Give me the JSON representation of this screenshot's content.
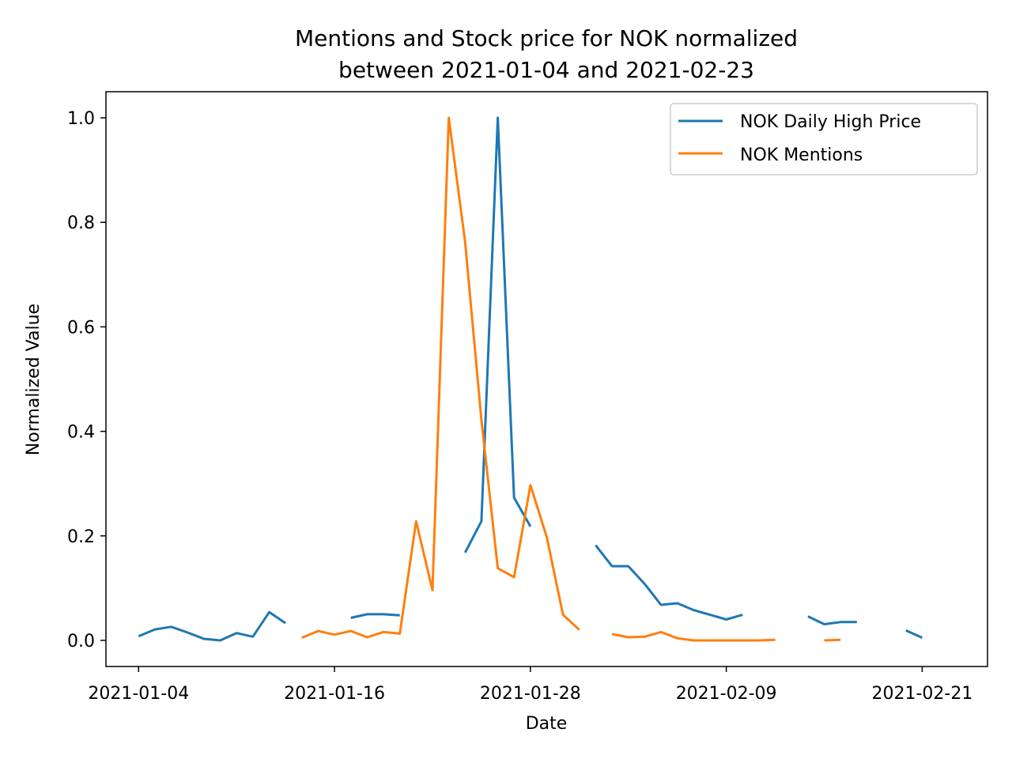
{
  "chart_data": {
    "type": "line",
    "title": "Mentions and Stock price for NOK normalized",
    "subtitle": "between 2021-01-04 and 2021-02-23",
    "xlabel": "Date",
    "ylabel": "Normalized Value",
    "xlim": [
      "2021-01-02",
      "2021-02-25"
    ],
    "ylim": [
      -0.05,
      1.05
    ],
    "x_ticks": [
      "2021-01-04",
      "2021-01-16",
      "2021-01-28",
      "2021-02-09",
      "2021-02-21"
    ],
    "y_ticks": [
      0.0,
      0.2,
      0.4,
      0.6,
      0.8,
      1.0
    ],
    "y_tick_labels": [
      "0.0",
      "0.2",
      "0.4",
      "0.6",
      "0.8",
      "1.0"
    ],
    "grid": false,
    "legend_position": "top-right",
    "series": [
      {
        "name": "NOK Daily High Price",
        "color": "#1f77b4",
        "points": [
          [
            "2021-01-04",
            0.008
          ],
          [
            "2021-01-05",
            0.021
          ],
          [
            "2021-01-06",
            0.026
          ],
          [
            "2021-01-07",
            0.015
          ],
          [
            "2021-01-08",
            0.003
          ],
          [
            "2021-01-09",
            0.0
          ],
          [
            "2021-01-10",
            0.014
          ],
          [
            "2021-01-11",
            0.007
          ],
          [
            "2021-01-12",
            0.054
          ],
          [
            "2021-01-13",
            0.033
          ],
          [
            "2021-01-14",
            null
          ],
          [
            "2021-01-15",
            null
          ],
          [
            "2021-01-16",
            null
          ],
          [
            "2021-01-17",
            0.043
          ],
          [
            "2021-01-18",
            0.05
          ],
          [
            "2021-01-19",
            0.05
          ],
          [
            "2021-01-20",
            0.048
          ],
          [
            "2021-01-21",
            null
          ],
          [
            "2021-01-22",
            null
          ],
          [
            "2021-01-23",
            null
          ],
          [
            "2021-01-24",
            0.168
          ],
          [
            "2021-01-25",
            0.228
          ],
          [
            "2021-01-26",
            1.0
          ],
          [
            "2021-01-27",
            0.273
          ],
          [
            "2021-01-28",
            0.218
          ],
          [
            "2021-01-29",
            null
          ],
          [
            "2021-01-30",
            null
          ],
          [
            "2021-01-31",
            null
          ],
          [
            "2021-02-01",
            0.182
          ],
          [
            "2021-02-02",
            0.142
          ],
          [
            "2021-02-03",
            0.142
          ],
          [
            "2021-02-04",
            0.108
          ],
          [
            "2021-02-05",
            0.068
          ],
          [
            "2021-02-06",
            0.071
          ],
          [
            "2021-02-07",
            0.058
          ],
          [
            "2021-02-08",
            0.049
          ],
          [
            "2021-02-09",
            0.04
          ],
          [
            "2021-02-10",
            0.049
          ],
          [
            "2021-02-11",
            null
          ],
          [
            "2021-02-12",
            null
          ],
          [
            "2021-02-13",
            null
          ],
          [
            "2021-02-14",
            0.046
          ],
          [
            "2021-02-15",
            0.031
          ],
          [
            "2021-02-16",
            0.035
          ],
          [
            "2021-02-17",
            0.035
          ],
          [
            "2021-02-18",
            null
          ],
          [
            "2021-02-19",
            null
          ],
          [
            "2021-02-20",
            0.019
          ],
          [
            "2021-02-21",
            0.005
          ]
        ]
      },
      {
        "name": "NOK Mentions",
        "color": "#ff7f0e",
        "points": [
          [
            "2021-01-14",
            0.005
          ],
          [
            "2021-01-15",
            0.018
          ],
          [
            "2021-01-16",
            0.011
          ],
          [
            "2021-01-17",
            0.018
          ],
          [
            "2021-01-18",
            0.006
          ],
          [
            "2021-01-19",
            0.016
          ],
          [
            "2021-01-20",
            0.013
          ],
          [
            "2021-01-21",
            0.228
          ],
          [
            "2021-01-22",
            0.096
          ],
          [
            "2021-01-23",
            1.0
          ],
          [
            "2021-01-24",
            0.762
          ],
          [
            "2021-01-25",
            0.422
          ],
          [
            "2021-01-26",
            0.138
          ],
          [
            "2021-01-27",
            0.121
          ],
          [
            "2021-01-28",
            0.297
          ],
          [
            "2021-01-29",
            0.198
          ],
          [
            "2021-01-30",
            0.049
          ],
          [
            "2021-01-31",
            0.02
          ],
          [
            "2021-02-01",
            null
          ],
          [
            "2021-02-02",
            0.012
          ],
          [
            "2021-02-03",
            0.006
          ],
          [
            "2021-02-04",
            0.007
          ],
          [
            "2021-02-05",
            0.016
          ],
          [
            "2021-02-06",
            0.004
          ],
          [
            "2021-02-07",
            0.0
          ],
          [
            "2021-02-08",
            0.0
          ],
          [
            "2021-02-09",
            0.0
          ],
          [
            "2021-02-10",
            0.0
          ],
          [
            "2021-02-11",
            0.0
          ],
          [
            "2021-02-12",
            0.001
          ],
          [
            "2021-02-13",
            null
          ],
          [
            "2021-02-14",
            null
          ],
          [
            "2021-02-15",
            0.0
          ],
          [
            "2021-02-16",
            0.001
          ]
        ]
      }
    ]
  }
}
